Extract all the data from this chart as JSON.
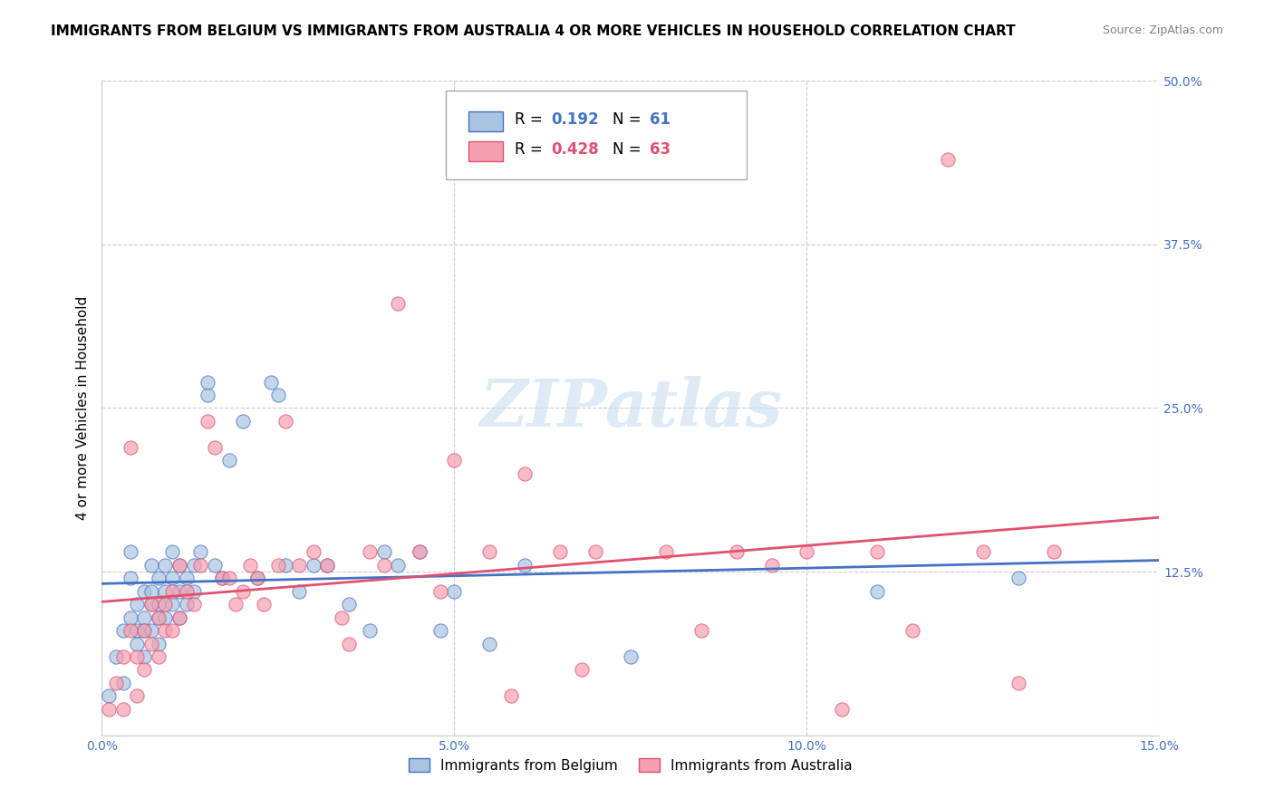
{
  "title": "IMMIGRANTS FROM BELGIUM VS IMMIGRANTS FROM AUSTRALIA 4 OR MORE VEHICLES IN HOUSEHOLD CORRELATION CHART",
  "source": "Source: ZipAtlas.com",
  "ylabel": "4 or more Vehicles in Household",
  "xlim": [
    0.0,
    0.15
  ],
  "ylim": [
    0.0,
    0.5
  ],
  "belgium_R": 0.192,
  "belgium_N": 61,
  "australia_R": 0.428,
  "australia_N": 63,
  "belgium_color": "#a8c4e0",
  "australia_color": "#f4a0b0",
  "belgium_line_color": "#4472c4",
  "australia_line_color": "#e05070",
  "legend_label_belgium": "Immigrants from Belgium",
  "legend_label_australia": "Immigrants from Australia",
  "watermark": "ZIPatlas",
  "title_fontsize": 11,
  "axis_color": "#4472c4",
  "belgium_x": [
    0.001,
    0.002,
    0.003,
    0.003,
    0.004,
    0.004,
    0.004,
    0.005,
    0.005,
    0.005,
    0.006,
    0.006,
    0.006,
    0.006,
    0.007,
    0.007,
    0.007,
    0.007,
    0.008,
    0.008,
    0.008,
    0.008,
    0.009,
    0.009,
    0.009,
    0.01,
    0.01,
    0.01,
    0.011,
    0.011,
    0.011,
    0.012,
    0.012,
    0.013,
    0.013,
    0.014,
    0.015,
    0.015,
    0.016,
    0.017,
    0.018,
    0.02,
    0.022,
    0.024,
    0.025,
    0.026,
    0.028,
    0.03,
    0.032,
    0.035,
    0.038,
    0.04,
    0.042,
    0.045,
    0.048,
    0.05,
    0.055,
    0.06,
    0.075,
    0.11,
    0.13
  ],
  "belgium_y": [
    0.03,
    0.06,
    0.08,
    0.04,
    0.14,
    0.12,
    0.09,
    0.1,
    0.08,
    0.07,
    0.11,
    0.09,
    0.08,
    0.06,
    0.13,
    0.11,
    0.1,
    0.08,
    0.12,
    0.1,
    0.09,
    0.07,
    0.13,
    0.11,
    0.09,
    0.14,
    0.12,
    0.1,
    0.13,
    0.11,
    0.09,
    0.12,
    0.1,
    0.13,
    0.11,
    0.14,
    0.26,
    0.27,
    0.13,
    0.12,
    0.21,
    0.24,
    0.12,
    0.27,
    0.26,
    0.13,
    0.11,
    0.13,
    0.13,
    0.1,
    0.08,
    0.14,
    0.13,
    0.14,
    0.08,
    0.11,
    0.07,
    0.13,
    0.06,
    0.11,
    0.12
  ],
  "australia_x": [
    0.001,
    0.002,
    0.003,
    0.003,
    0.004,
    0.004,
    0.005,
    0.005,
    0.006,
    0.006,
    0.007,
    0.007,
    0.008,
    0.008,
    0.009,
    0.009,
    0.01,
    0.01,
    0.011,
    0.011,
    0.012,
    0.013,
    0.014,
    0.015,
    0.016,
    0.017,
    0.018,
    0.019,
    0.02,
    0.021,
    0.022,
    0.023,
    0.025,
    0.026,
    0.028,
    0.03,
    0.032,
    0.034,
    0.035,
    0.038,
    0.04,
    0.042,
    0.045,
    0.048,
    0.05,
    0.055,
    0.058,
    0.06,
    0.065,
    0.068,
    0.07,
    0.08,
    0.085,
    0.09,
    0.095,
    0.1,
    0.105,
    0.11,
    0.115,
    0.12,
    0.125,
    0.13,
    0.135
  ],
  "australia_y": [
    0.02,
    0.04,
    0.06,
    0.02,
    0.22,
    0.08,
    0.06,
    0.03,
    0.08,
    0.05,
    0.1,
    0.07,
    0.09,
    0.06,
    0.1,
    0.08,
    0.11,
    0.08,
    0.13,
    0.09,
    0.11,
    0.1,
    0.13,
    0.24,
    0.22,
    0.12,
    0.12,
    0.1,
    0.11,
    0.13,
    0.12,
    0.1,
    0.13,
    0.24,
    0.13,
    0.14,
    0.13,
    0.09,
    0.07,
    0.14,
    0.13,
    0.33,
    0.14,
    0.11,
    0.21,
    0.14,
    0.03,
    0.2,
    0.14,
    0.05,
    0.14,
    0.14,
    0.08,
    0.14,
    0.13,
    0.14,
    0.02,
    0.14,
    0.08,
    0.44,
    0.14,
    0.04,
    0.14
  ]
}
